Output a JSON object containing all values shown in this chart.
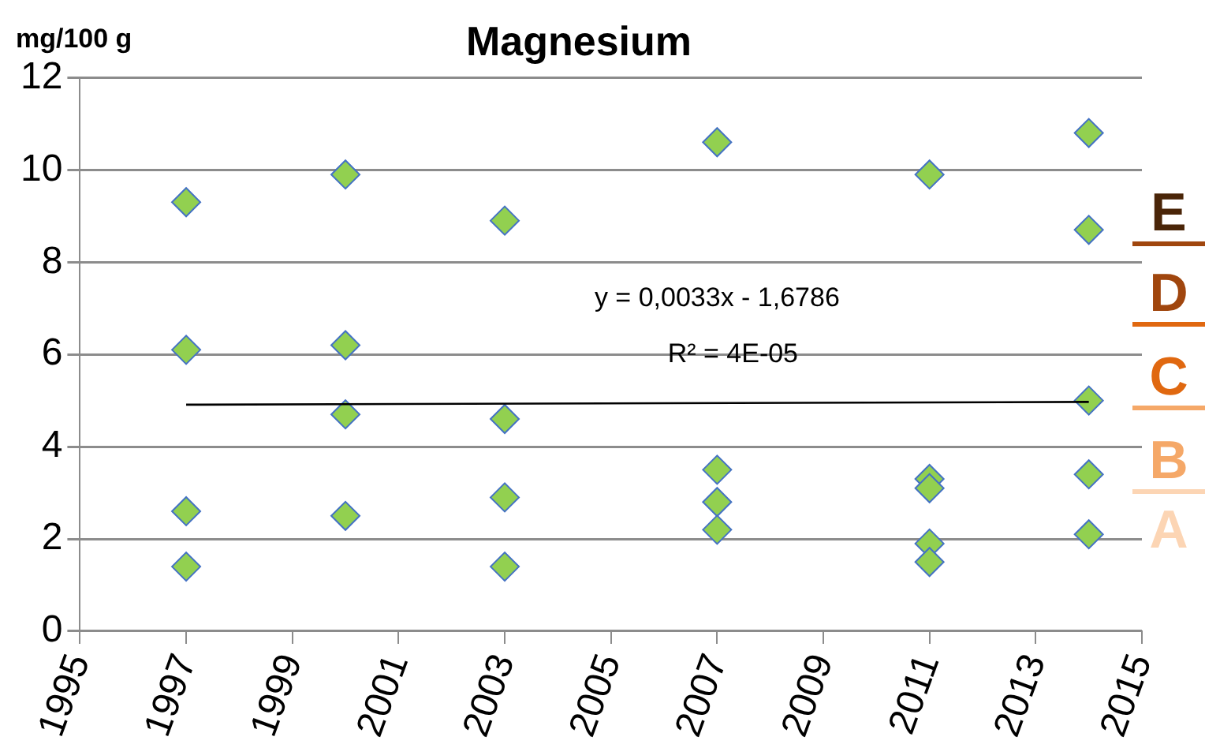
{
  "chart_data": {
    "type": "scatter",
    "title": "Magnesium",
    "ylabel": "mg/100 g",
    "series": [
      {
        "type": "scatter",
        "color": "#92d050",
        "x": [
          1997,
          1997,
          1997,
          1997,
          2000,
          2000,
          2000,
          2000,
          2003,
          2003,
          2003,
          2003,
          2007,
          2007,
          2007,
          2007,
          2011,
          2011,
          2011,
          2011,
          2011,
          2014,
          2014,
          2014,
          2014,
          2014
        ],
        "values": [
          9.3,
          6.1,
          2.6,
          1.4,
          9.9,
          6.2,
          4.7,
          2.5,
          8.9,
          4.6,
          2.9,
          1.4,
          10.6,
          3.5,
          2.8,
          2.2,
          9.9,
          3.3,
          3.1,
          1.9,
          1.5,
          10.8,
          8.7,
          5.0,
          3.4,
          2.1
        ]
      },
      {
        "type": "line",
        "color": "#000000",
        "marker": "none",
        "x": [
          1997,
          2014
        ],
        "values": [
          4.91,
          4.97
        ]
      }
    ],
    "xlim": [
      1995,
      2015
    ],
    "xticks": [
      1995,
      1997,
      1999,
      2001,
      2003,
      2005,
      2007,
      2009,
      2011,
      2013,
      2015
    ],
    "ylim": [
      0,
      12
    ],
    "yticks": [
      0,
      2,
      4,
      6,
      8,
      10,
      12
    ],
    "grid": "y",
    "marker": "diamond",
    "legend": false,
    "annotations": [
      "y = 0,0033x - 1,6786",
      "R² = 4E-05",
      "E",
      "D",
      "C",
      "B",
      "A"
    ]
  }
}
